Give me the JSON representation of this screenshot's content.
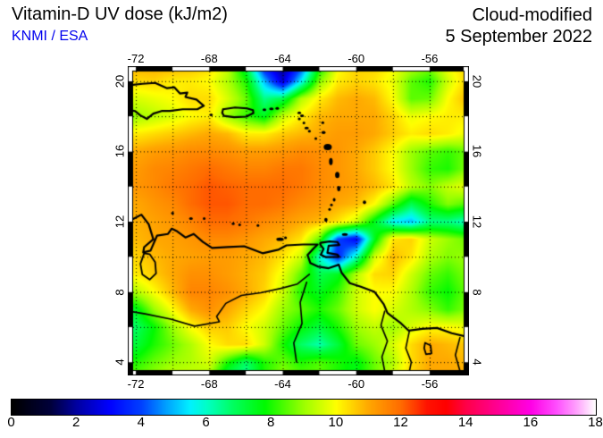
{
  "header": {
    "title": "Vitamin-D UV dose (kJ/m2)",
    "credit": "KNMI / ESA",
    "subtitle_line1": "Cloud-modified",
    "subtitle_line2": "5 September 2022"
  },
  "colors": {
    "credit_blue": "#0000ee",
    "frame_black": "#000000",
    "land_line": "#000000"
  },
  "map": {
    "projection": {
      "lon_min": -72.15,
      "lon_max": -54.15,
      "lat_min": 3.55,
      "lat_max": 20.55
    },
    "grid_step_deg": 2,
    "lon_ticks": [
      -72,
      -68,
      -64,
      -60,
      -56
    ],
    "lat_ticks": [
      20,
      16,
      12,
      8,
      4
    ],
    "field": {
      "units": "kJ/m2",
      "lon_start": -73,
      "dlon": 1,
      "lat_start": 21,
      "dlat": -1,
      "values": [
        [
          11.0,
          11.0,
          11.0,
          11.0,
          10.8,
          10.5,
          9.5,
          7.0,
          3.0,
          1.5,
          3.5,
          7.5,
          9.8,
          10.5,
          10.5,
          10.0,
          9.5,
          9.0,
          10.0,
          10.5
        ],
        [
          11.0,
          10.4,
          10.5,
          10.2,
          10.2,
          10.0,
          9.2,
          8.0,
          5.0,
          2.5,
          5.5,
          8.8,
          10.2,
          10.5,
          10.3,
          9.8,
          8.5,
          8.0,
          9.5,
          10.5
        ],
        [
          10.2,
          9.6,
          9.8,
          10.0,
          10.4,
          10.4,
          9.6,
          8.6,
          6.5,
          7.0,
          9.2,
          10.2,
          10.8,
          11.0,
          10.8,
          10.0,
          8.5,
          8.6,
          10.0,
          10.8
        ],
        [
          7.0,
          9.0,
          9.3,
          9.6,
          10.0,
          10.2,
          9.0,
          8.2,
          7.5,
          9.4,
          10.2,
          10.8,
          11.0,
          11.0,
          11.0,
          10.5,
          9.8,
          10.0,
          10.2,
          10.2
        ],
        [
          10.3,
          10.2,
          10.4,
          10.6,
          10.8,
          11.0,
          10.8,
          10.2,
          10.2,
          10.6,
          10.8,
          11.0,
          11.2,
          11.2,
          11.0,
          10.6,
          10.2,
          10.4,
          10.2,
          9.8
        ],
        [
          11.0,
          11.0,
          11.2,
          11.3,
          11.5,
          11.5,
          11.4,
          11.2,
          11.2,
          11.3,
          11.5,
          11.4,
          11.3,
          11.0,
          10.6,
          10.0,
          9.0,
          8.5,
          8.2,
          8.6
        ],
        [
          11.0,
          11.2,
          11.5,
          11.6,
          11.8,
          12.0,
          11.8,
          11.6,
          11.6,
          11.8,
          11.8,
          11.5,
          11.3,
          11.0,
          10.6,
          10.0,
          9.0,
          8.2,
          8.0,
          8.8
        ],
        [
          11.0,
          11.3,
          11.5,
          11.8,
          12.0,
          12.2,
          12.1,
          12.0,
          12.0,
          12.0,
          11.8,
          11.5,
          11.3,
          11.1,
          10.8,
          10.3,
          9.3,
          8.8,
          9.4,
          9.8
        ],
        [
          10.8,
          11.0,
          11.3,
          11.5,
          12.0,
          12.2,
          12.2,
          12.0,
          12.0,
          11.8,
          11.5,
          11.3,
          11.0,
          10.8,
          10.0,
          8.5,
          7.0,
          8.0,
          8.8,
          8.4
        ],
        [
          10.6,
          10.9,
          11.1,
          11.3,
          11.6,
          12.0,
          12.0,
          11.8,
          11.5,
          11.3,
          11.0,
          10.8,
          10.3,
          9.5,
          7.5,
          5.5,
          5.0,
          6.5,
          6.5,
          6.0
        ],
        [
          10.5,
          10.8,
          11.0,
          11.1,
          11.3,
          11.5,
          11.5,
          11.3,
          11.0,
          10.8,
          10.3,
          8.5,
          4.0,
          3.0,
          7.5,
          10.3,
          10.5,
          9.5,
          9.0,
          8.6
        ],
        [
          10.2,
          10.5,
          10.8,
          11.0,
          11.1,
          11.2,
          11.2,
          11.0,
          10.8,
          10.3,
          9.5,
          6.0,
          3.5,
          6.0,
          9.5,
          10.8,
          10.3,
          9.2,
          8.8,
          9.0
        ],
        [
          9.8,
          10.2,
          10.6,
          11.0,
          11.4,
          11.4,
          11.2,
          10.9,
          10.6,
          9.8,
          8.5,
          7.0,
          7.5,
          9.2,
          10.4,
          10.5,
          9.5,
          8.6,
          8.2,
          8.8
        ],
        [
          8.5,
          9.2,
          10.0,
          10.8,
          11.6,
          11.6,
          11.4,
          11.0,
          10.5,
          9.5,
          8.0,
          7.5,
          8.2,
          9.5,
          10.0,
          10.0,
          9.2,
          8.2,
          7.8,
          8.6
        ],
        [
          7.0,
          7.5,
          9.0,
          10.0,
          11.0,
          11.4,
          11.0,
          10.5,
          10.0,
          9.0,
          8.5,
          8.0,
          8.6,
          9.5,
          10.0,
          9.6,
          9.2,
          8.8,
          8.2,
          8.8
        ],
        [
          6.5,
          6.8,
          7.8,
          9.0,
          10.0,
          10.6,
          10.6,
          10.0,
          9.5,
          8.6,
          7.8,
          7.2,
          8.0,
          9.0,
          9.4,
          9.0,
          9.6,
          10.0,
          10.0,
          9.8
        ],
        [
          7.5,
          7.2,
          8.0,
          8.6,
          9.2,
          10.0,
          10.4,
          10.4,
          9.5,
          8.0,
          6.8,
          6.2,
          7.2,
          8.6,
          9.0,
          9.6,
          10.4,
          11.0,
          10.8,
          10.6
        ],
        [
          8.5,
          8.0,
          8.6,
          9.0,
          9.2,
          9.6,
          8.0,
          6.8,
          8.0,
          8.6,
          8.0,
          8.4,
          8.0,
          7.6,
          8.6,
          9.2,
          10.4,
          11.0,
          11.0,
          10.8
        ],
        [
          9.0,
          8.6,
          9.0,
          9.5,
          9.5,
          9.0,
          6.8,
          6.2,
          8.0,
          9.0,
          8.6,
          8.6,
          8.0,
          7.6,
          8.6,
          9.6,
          10.5,
          11.0,
          11.0,
          11.0
        ]
      ]
    },
    "coastlines": {
      "south_america": [
        [
          -72.9,
          11.1
        ],
        [
          -72.45,
          11.55
        ],
        [
          -72.25,
          12.1
        ],
        [
          -71.7,
          12.4
        ],
        [
          -71.3,
          11.85
        ],
        [
          -71.05,
          11.0
        ],
        [
          -71.55,
          10.55
        ],
        [
          -71.6,
          10.25
        ],
        [
          -71.2,
          10.35
        ],
        [
          -70.85,
          11.2
        ],
        [
          -70.25,
          11.3
        ],
        [
          -70.05,
          11.6
        ],
        [
          -69.75,
          11.45
        ],
        [
          -69.3,
          11.1
        ],
        [
          -68.85,
          11.3
        ],
        [
          -68.35,
          10.85
        ],
        [
          -67.85,
          10.5
        ],
        [
          -67.0,
          10.55
        ],
        [
          -66.1,
          10.6
        ],
        [
          -65.1,
          10.2
        ],
        [
          -64.25,
          10.4
        ],
        [
          -63.8,
          10.65
        ],
        [
          -62.9,
          10.7
        ],
        [
          -62.1,
          10.7
        ],
        [
          -62.3,
          10.5
        ],
        [
          -62.65,
          10.1
        ],
        [
          -62.5,
          9.65
        ],
        [
          -62.1,
          9.45
        ],
        [
          -61.5,
          9.35
        ],
        [
          -60.95,
          9.55
        ],
        [
          -60.8,
          9.1
        ],
        [
          -60.35,
          8.5
        ],
        [
          -59.75,
          8.3
        ],
        [
          -59.0,
          8.0
        ],
        [
          -58.5,
          7.3
        ],
        [
          -58.3,
          6.8
        ],
        [
          -57.55,
          6.2
        ],
        [
          -57.15,
          5.8
        ],
        [
          -56.4,
          5.9
        ],
        [
          -55.6,
          5.95
        ],
        [
          -54.8,
          5.65
        ],
        [
          -54.0,
          5.45
        ]
      ],
      "hispaniola": [
        [
          -72.3,
          18.35
        ],
        [
          -72.05,
          18.3
        ],
        [
          -71.75,
          18.05
        ],
        [
          -71.4,
          17.85
        ],
        [
          -71.05,
          18.15
        ],
        [
          -70.6,
          18.3
        ],
        [
          -70.15,
          18.3
        ],
        [
          -69.45,
          18.4
        ],
        [
          -68.65,
          18.4
        ],
        [
          -68.3,
          18.6
        ],
        [
          -68.7,
          18.95
        ],
        [
          -69.3,
          19.1
        ],
        [
          -69.2,
          19.35
        ],
        [
          -69.6,
          19.3
        ],
        [
          -69.9,
          19.65
        ],
        [
          -70.3,
          19.6
        ],
        [
          -70.95,
          19.9
        ],
        [
          -71.65,
          19.85
        ],
        [
          -72.3,
          19.78
        ]
      ],
      "puerto_rico": [
        [
          -67.25,
          18.4
        ],
        [
          -66.6,
          18.5
        ],
        [
          -65.95,
          18.45
        ],
        [
          -65.62,
          18.35
        ],
        [
          -65.6,
          18.18
        ],
        [
          -66.0,
          17.98
        ],
        [
          -66.65,
          17.95
        ],
        [
          -67.2,
          18.02
        ],
        [
          -67.3,
          18.2
        ],
        [
          -67.25,
          18.4
        ]
      ],
      "trinidad": [
        [
          -61.95,
          10.8
        ],
        [
          -61.45,
          10.87
        ],
        [
          -61.02,
          10.84
        ],
        [
          -60.92,
          10.67
        ],
        [
          -61.5,
          10.63
        ],
        [
          -61.57,
          10.22
        ],
        [
          -61.02,
          10.12
        ],
        [
          -60.93,
          10.0
        ],
        [
          -61.65,
          9.98
        ],
        [
          -61.93,
          10.12
        ],
        [
          -61.78,
          10.45
        ],
        [
          -61.95,
          10.68
        ],
        [
          -61.95,
          10.8
        ]
      ]
    },
    "lake_outlines": {
      "maracaibo": [
        [
          -71.55,
          10.2
        ],
        [
          -71.75,
          9.6
        ],
        [
          -71.65,
          9.0
        ],
        [
          -71.25,
          8.7
        ],
        [
          -70.9,
          9.05
        ],
        [
          -70.95,
          9.7
        ],
        [
          -71.25,
          10.15
        ],
        [
          -71.55,
          10.2
        ]
      ],
      "guyana_loop": [
        [
          -56.25,
          5.1
        ],
        [
          -55.95,
          4.95
        ],
        [
          -55.9,
          4.5
        ],
        [
          -56.2,
          4.45
        ],
        [
          -56.3,
          4.8
        ],
        [
          -56.25,
          5.1
        ]
      ]
    },
    "rivers": {
      "orinoco_meta": [
        [
          -62.55,
          9.0
        ],
        [
          -63.2,
          8.45
        ],
        [
          -64.1,
          8.2
        ],
        [
          -65.2,
          7.95
        ],
        [
          -66.25,
          7.8
        ],
        [
          -67.1,
          7.35
        ],
        [
          -67.6,
          6.6
        ],
        [
          -67.45,
          6.3
        ],
        [
          -68.8,
          6.05
        ],
        [
          -70.1,
          6.45
        ],
        [
          -71.5,
          6.75
        ],
        [
          -72.9,
          7.0
        ]
      ],
      "caroni": [
        [
          -62.7,
          8.55
        ],
        [
          -63.05,
          7.4
        ],
        [
          -62.95,
          6.2
        ],
        [
          -63.4,
          5.1
        ],
        [
          -63.25,
          4.0
        ]
      ],
      "essequibo": [
        [
          -58.45,
          6.9
        ],
        [
          -58.65,
          6.1
        ],
        [
          -58.3,
          5.2
        ],
        [
          -58.6,
          4.3
        ],
        [
          -58.45,
          3.5
        ]
      ],
      "courantyne": [
        [
          -57.1,
          5.8
        ],
        [
          -57.3,
          4.8
        ],
        [
          -57.0,
          4.0
        ],
        [
          -57.1,
          3.5
        ]
      ],
      "maroni": [
        [
          -54.35,
          5.4
        ],
        [
          -54.6,
          4.4
        ],
        [
          -54.35,
          3.5
        ]
      ]
    },
    "filled_islands": [
      [
        -67.9,
        18.08,
        0.09,
        0.06
      ],
      [
        -65.0,
        18.38,
        0.1,
        0.05
      ],
      [
        -64.62,
        18.43,
        0.12,
        0.05
      ],
      [
        -64.3,
        18.45,
        0.1,
        0.05
      ],
      [
        -63.1,
        18.2,
        0.1,
        0.05
      ],
      [
        -62.95,
        18.03,
        0.11,
        0.07
      ],
      [
        -63.1,
        17.85,
        0.08,
        0.05
      ],
      [
        -62.85,
        17.62,
        0.06,
        0.05
      ],
      [
        -62.7,
        17.33,
        0.12,
        0.08
      ],
      [
        -62.55,
        17.15,
        0.08,
        0.07
      ],
      [
        -61.82,
        17.63,
        0.08,
        0.07
      ],
      [
        -61.78,
        17.08,
        0.11,
        0.09
      ],
      [
        -62.2,
        16.73,
        0.07,
        0.06
      ],
      [
        -61.55,
        16.25,
        0.22,
        0.18
      ],
      [
        -61.38,
        15.42,
        0.1,
        0.2
      ],
      [
        -61.03,
        14.66,
        0.12,
        0.18
      ],
      [
        -60.95,
        13.88,
        0.09,
        0.15
      ],
      [
        -61.2,
        13.25,
        0.07,
        0.1
      ],
      [
        -61.35,
        12.95,
        0.05,
        0.06
      ],
      [
        -61.45,
        12.7,
        0.05,
        0.06
      ],
      [
        -61.65,
        12.1,
        0.09,
        0.11
      ],
      [
        -59.55,
        13.1,
        0.09,
        0.11
      ],
      [
        -60.62,
        11.28,
        0.16,
        0.07
      ],
      [
        -64.15,
        11.0,
        0.2,
        0.1
      ],
      [
        -63.85,
        11.08,
        0.08,
        0.06
      ],
      [
        -70.0,
        12.48,
        0.08,
        0.06
      ],
      [
        -69.0,
        12.18,
        0.1,
        0.07
      ],
      [
        -68.28,
        12.18,
        0.06,
        0.07
      ],
      [
        -66.7,
        11.88,
        0.08,
        0.04
      ],
      [
        -66.35,
        11.82,
        0.06,
        0.04
      ],
      [
        -65.35,
        11.78,
        0.05,
        0.04
      ]
    ]
  },
  "colorbar": {
    "min": 0,
    "max": 18,
    "ticks": [
      0,
      2,
      4,
      6,
      8,
      10,
      12,
      14,
      16,
      18
    ],
    "stops": [
      [
        0,
        "#000000"
      ],
      [
        1.2,
        "#00003c"
      ],
      [
        2,
        "#0000a2"
      ],
      [
        3,
        "#0000ff"
      ],
      [
        4,
        "#0041ff"
      ],
      [
        4.8,
        "#00a6ff"
      ],
      [
        5.5,
        "#00f2ff"
      ],
      [
        6,
        "#00ffc8"
      ],
      [
        6.8,
        "#00ff62"
      ],
      [
        7.8,
        "#00fa00"
      ],
      [
        9,
        "#9cff00"
      ],
      [
        10,
        "#ffff00"
      ],
      [
        11,
        "#ffa800"
      ],
      [
        12,
        "#ff6c00"
      ],
      [
        12.8,
        "#ff1400"
      ],
      [
        13.4,
        "#ff0000"
      ],
      [
        14,
        "#ff0048"
      ],
      [
        15,
        "#ff0096"
      ],
      [
        16,
        "#ff00e6"
      ],
      [
        16.8,
        "#ff4fff"
      ],
      [
        17.4,
        "#ff9ffd"
      ],
      [
        18,
        "#ffffff"
      ]
    ]
  }
}
